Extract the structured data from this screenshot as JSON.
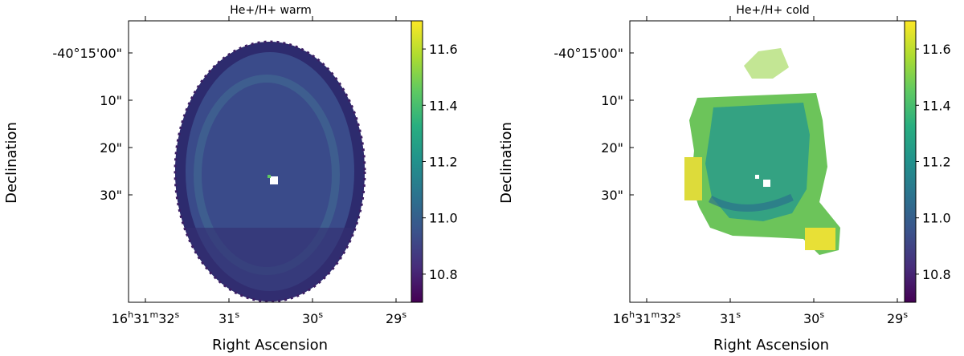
{
  "chart_data": [
    {
      "type": "heatmap",
      "title": "He+/H+ warm",
      "xlabel": "Right Ascension",
      "ylabel": "Declination",
      "x_ticks": [
        {
          "h": "16",
          "m": "31",
          "s": "32",
          "value_s": 32
        },
        {
          "s": "31",
          "value_s": 31
        },
        {
          "s": "30",
          "value_s": 30
        },
        {
          "s": "29",
          "value_s": 29
        }
      ],
      "y_ticks": [
        {
          "label": "-40°15'00\"",
          "value_arcsec": 0
        },
        {
          "label": "10\"",
          "value_arcsec": 10
        },
        {
          "label": "20\"",
          "value_arcsec": 20
        },
        {
          "label": "30\"",
          "value_arcsec": 30
        }
      ],
      "colorbar": {
        "colormap": "viridis",
        "range": [
          10.7,
          11.7
        ],
        "ticks": [
          "11.6",
          "11.4",
          "11.2",
          "11.0",
          "10.8"
        ]
      }
    },
    {
      "type": "heatmap",
      "title": "He+/H+ cold",
      "xlabel": "Right Ascension",
      "ylabel": "Declination",
      "x_ticks": [
        {
          "h": "16",
          "m": "31",
          "s": "32",
          "value_s": 32
        },
        {
          "s": "31",
          "value_s": 31
        },
        {
          "s": "30",
          "value_s": 30
        },
        {
          "s": "29",
          "value_s": 29
        }
      ],
      "y_ticks": [
        {
          "label": "-40°15'00\"",
          "value_arcsec": 0
        },
        {
          "label": "10\"",
          "value_arcsec": 10
        },
        {
          "label": "20\"",
          "value_arcsec": 20
        },
        {
          "label": "30\"",
          "value_arcsec": 30
        }
      ],
      "colorbar": {
        "colormap": "viridis",
        "range": [
          10.7,
          11.7
        ],
        "ticks": [
          "11.6",
          "11.4",
          "11.2",
          "11.0",
          "10.8"
        ]
      }
    }
  ]
}
